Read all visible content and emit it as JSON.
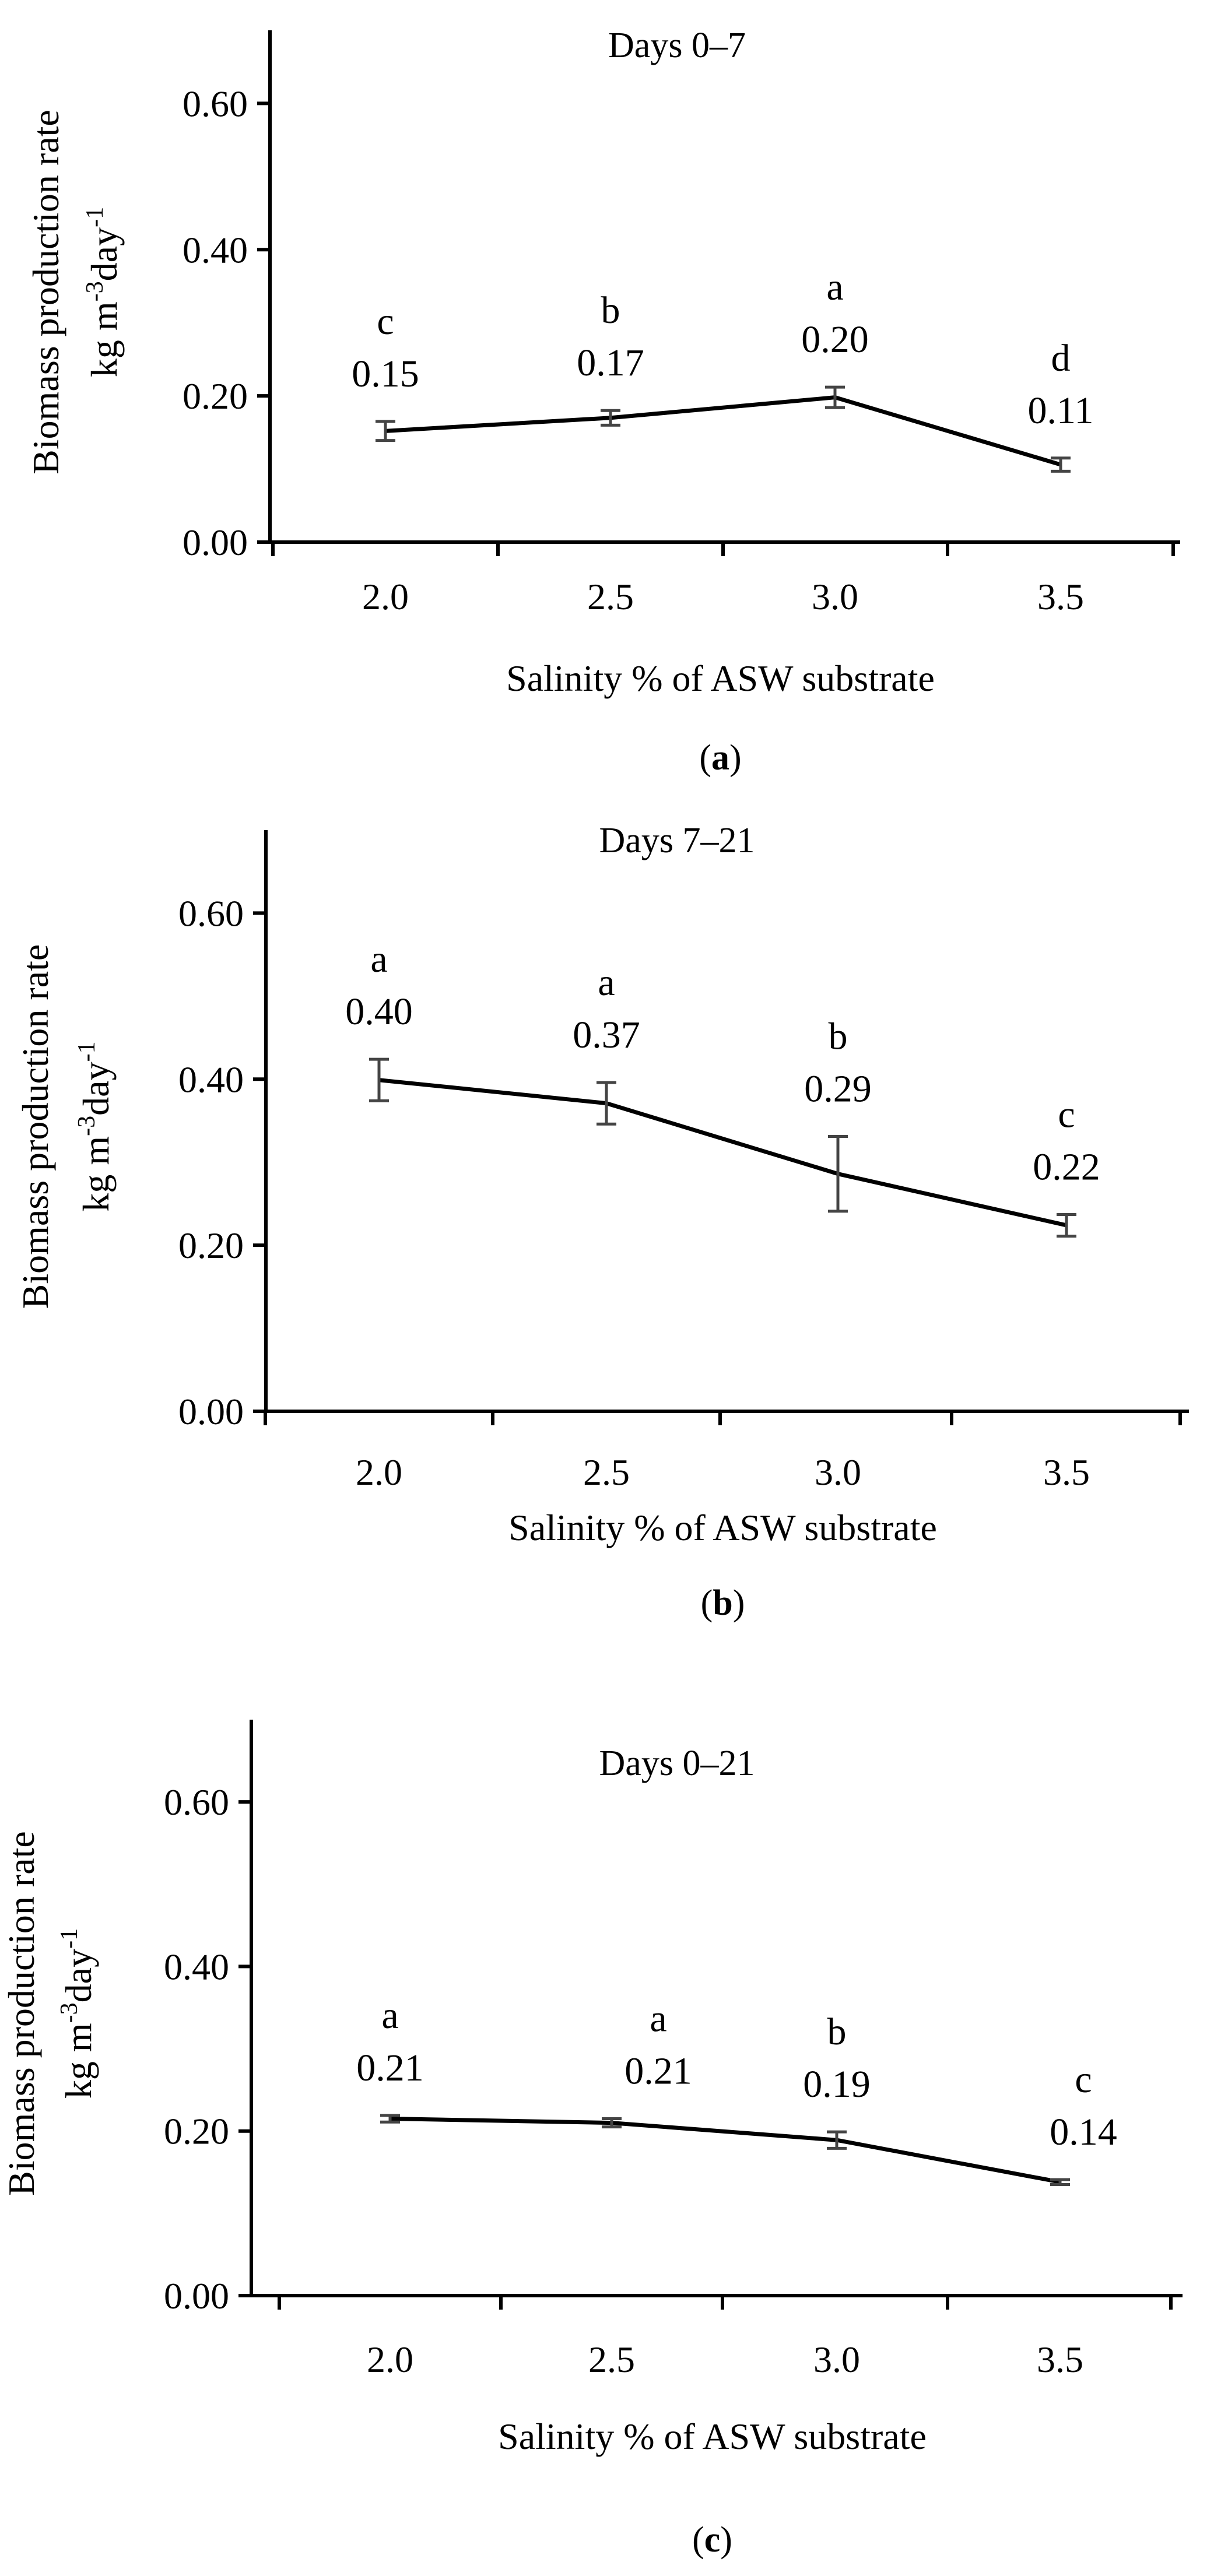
{
  "figure": {
    "panels": [
      "(a)",
      "(b)",
      "(c)"
    ]
  },
  "chart_data": [
    {
      "type": "line",
      "title": "Days 0–7",
      "xlabel": "Salinity % of ASW substrate",
      "ylabel": "Biomass production rate",
      "ylabel_units": {
        "kg": "kg m",
        "exp1": "-3",
        "day": "day",
        "exp2": "-1"
      },
      "panel_label": {
        "open": "(",
        "letter": "a",
        "close": ")"
      },
      "categories": [
        "2.0",
        "2.5",
        "3.0",
        "3.5"
      ],
      "values": [
        0.152,
        0.17,
        0.198,
        0.106
      ],
      "errors": [
        0.013,
        0.01,
        0.014,
        0.009
      ],
      "value_labels": [
        "0.15",
        "0.17",
        "0.20",
        "0.11"
      ],
      "letters": [
        "c",
        "b",
        "a",
        "d"
      ],
      "yticks": [
        "0.00",
        "0.20",
        "0.40",
        "0.60"
      ],
      "ylim": [
        0,
        0.7
      ]
    },
    {
      "type": "line",
      "title": "Days 7–21",
      "xlabel": "Salinity % of ASW substrate",
      "ylabel": "Biomass production rate",
      "ylabel_units": {
        "kg": "kg m",
        "exp1": "-3",
        "day": "day",
        "exp2": "-1"
      },
      "panel_label": {
        "open": "(",
        "letter": "b",
        "close": ")"
      },
      "categories": [
        "2.0",
        "2.5",
        "3.0",
        "3.5"
      ],
      "values": [
        0.399,
        0.371,
        0.286,
        0.224
      ],
      "errors": [
        0.025,
        0.025,
        0.045,
        0.013
      ],
      "value_labels": [
        "0.40",
        "0.37",
        "0.29",
        "0.22"
      ],
      "letters": [
        "a",
        "a",
        "b",
        "c"
      ],
      "yticks": [
        "0.00",
        "0.20",
        "0.40",
        "0.60"
      ],
      "ylim": [
        0,
        0.7
      ]
    },
    {
      "type": "line",
      "title": "Days 0–21",
      "xlabel": "Salinity % of ASW substrate",
      "ylabel": "Biomass production rate",
      "ylabel_units": {
        "kg": "kg m",
        "exp1": "-3",
        "day": "day",
        "exp2": "-1"
      },
      "panel_label": {
        "open": "(",
        "letter": "c",
        "close": ")"
      },
      "categories": [
        "2.0",
        "2.5",
        "3.0",
        "3.5"
      ],
      "values": [
        0.215,
        0.21,
        0.189,
        0.138
      ],
      "errors": [
        0.004,
        0.005,
        0.01,
        0.003
      ],
      "value_labels": [
        "0.21",
        "0.21",
        "0.19",
        "0.14"
      ],
      "letters": [
        "a",
        "a",
        "b",
        "c"
      ],
      "yticks": [
        "0.00",
        "0.20",
        "0.40",
        "0.60"
      ],
      "ylim": [
        0,
        0.7
      ]
    }
  ]
}
